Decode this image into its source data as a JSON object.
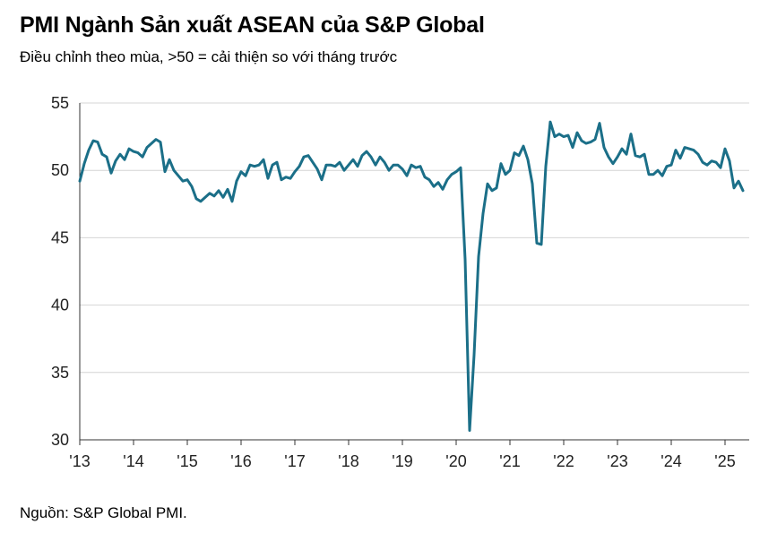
{
  "title": "PMI Ngành Sản xuất ASEAN của S&P Global",
  "subtitle": "Điều chỉnh theo mùa, >50 = cải thiện so với tháng trước",
  "source": "Nguồn: S&P Global PMI.",
  "colors": {
    "line": "#1b6f88",
    "grid": "#d4d4d4",
    "axis": "#333333"
  },
  "chart_data": {
    "type": "line",
    "title": "PMI Ngành Sản xuất ASEAN của S&P Global",
    "subtitle": "Điều chỉnh theo mùa, >50 = cải thiện so với tháng trước",
    "xlabel": "",
    "ylabel": "",
    "ylim": [
      30,
      55
    ],
    "yticks": [
      30,
      35,
      40,
      45,
      50,
      55
    ],
    "xticks": [
      "'13",
      "'14",
      "'15",
      "'16",
      "'17",
      "'18",
      "'19",
      "'20",
      "'21",
      "'22",
      "'23",
      "'24",
      "'25"
    ],
    "grid": true,
    "x_start": "2013-01",
    "series": [
      {
        "values": [
          49.2,
          50.5,
          51.5,
          52.2,
          52.1,
          51.2,
          51.0,
          49.8,
          50.7,
          51.2,
          50.8,
          51.6,
          51.4,
          51.3,
          51.0,
          51.7,
          52.0,
          52.3,
          52.1,
          49.9,
          50.8,
          50.0,
          49.6,
          49.2,
          49.3,
          48.8,
          47.9,
          47.7,
          48.0,
          48.3,
          48.1,
          48.5,
          48.0,
          48.6,
          47.7,
          49.2,
          49.9,
          49.6,
          50.4,
          50.3,
          50.4,
          50.8,
          49.4,
          50.4,
          50.6,
          49.3,
          49.5,
          49.4,
          49.9,
          50.3,
          51.0,
          51.1,
          50.6,
          50.1,
          49.3,
          50.4,
          50.4,
          50.3,
          50.6,
          50.0,
          50.4,
          50.8,
          50.3,
          51.1,
          51.4,
          51.0,
          50.4,
          51.0,
          50.6,
          50.0,
          50.4,
          50.4,
          50.1,
          49.6,
          50.4,
          50.2,
          50.3,
          49.5,
          49.3,
          48.8,
          49.1,
          48.6,
          49.3,
          49.7,
          49.9,
          50.2,
          43.4,
          30.7,
          36.3,
          43.6,
          46.8,
          49.0,
          48.5,
          48.7,
          50.5,
          49.7,
          50.0,
          51.3,
          51.1,
          51.8,
          50.8,
          49.0,
          44.6,
          44.5,
          50.3,
          53.6,
          52.5,
          52.7,
          52.5,
          52.6,
          51.7,
          52.8,
          52.2,
          52.0,
          52.1,
          52.3,
          53.5,
          51.7,
          51.0,
          50.5,
          51.0,
          51.6,
          51.2,
          52.7,
          51.1,
          51.0,
          51.2,
          49.7,
          49.7,
          50.0,
          49.6,
          50.3,
          50.4,
          51.5,
          50.9,
          51.7,
          51.6,
          51.5,
          51.2,
          50.6,
          50.4,
          50.7,
          50.6,
          50.2,
          51.6,
          50.7,
          48.7,
          49.2,
          48.5
        ]
      }
    ]
  }
}
